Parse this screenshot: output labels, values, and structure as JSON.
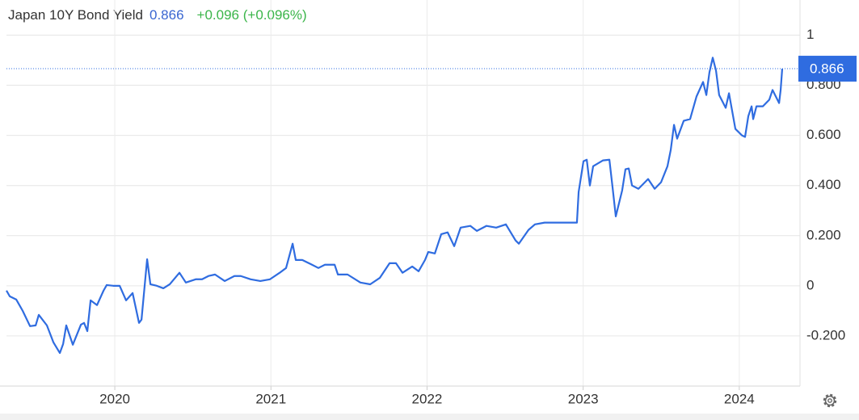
{
  "chart_data": {
    "type": "line",
    "title": "Japan 10Y Bond Yield",
    "change": "+0.096 (+0.096%)",
    "xlim": [
      2019.306,
      2024.389
    ],
    "xticks": [
      2020,
      2021,
      2022,
      2023,
      2024
    ],
    "ylim": [
      -0.4,
      1.14
    ],
    "yticks": [
      {
        "value": -0.2,
        "label": "-0.200"
      },
      0,
      {
        "value": 0.2,
        "label": "0.200"
      },
      {
        "value": 0.4,
        "label": "0.400"
      },
      {
        "value": 0.6,
        "label": "0.600"
      },
      {
        "value": 0.8,
        "label": "0.800"
      },
      1
    ],
    "grid": true,
    "series": [
      {
        "name": "Japan 10Y Bond Yield",
        "color": "#2f6ce0",
        "x": [
          2019.306,
          2019.327,
          2019.369,
          2019.41,
          2019.457,
          2019.493,
          2019.513,
          2019.565,
          2019.607,
          2019.648,
          2019.669,
          2019.689,
          2019.731,
          2019.783,
          2019.803,
          2019.824,
          2019.845,
          2019.886,
          2019.928,
          2019.948,
          2019.99,
          2020.031,
          2020.072,
          2020.114,
          2020.155,
          2020.171,
          2020.207,
          2020.228,
          2020.269,
          2020.311,
          2020.352,
          2020.414,
          2020.455,
          2020.518,
          2020.559,
          2020.6,
          2020.642,
          2020.704,
          2020.766,
          2020.807,
          2020.87,
          2020.932,
          2020.994,
          2021.056,
          2021.097,
          2021.139,
          2021.159,
          2021.201,
          2021.263,
          2021.304,
          2021.346,
          2021.408,
          2021.429,
          2021.491,
          2021.573,
          2021.636,
          2021.698,
          2021.76,
          2021.801,
          2021.843,
          2021.905,
          2021.946,
          2021.987,
          2022.008,
          2022.05,
          2022.091,
          2022.132,
          2022.174,
          2022.215,
          2022.277,
          2022.319,
          2022.381,
          2022.443,
          2022.505,
          2022.567,
          2022.588,
          2022.65,
          2022.691,
          2022.753,
          2022.836,
          2022.898,
          2022.96,
          2022.971,
          2023.002,
          2023.023,
          2023.043,
          2023.064,
          2023.126,
          2023.168,
          2023.188,
          2023.209,
          2023.25,
          2023.271,
          2023.292,
          2023.313,
          2023.354,
          2023.416,
          2023.458,
          2023.499,
          2023.54,
          2023.561,
          2023.582,
          2023.602,
          2023.644,
          2023.685,
          2023.726,
          2023.768,
          2023.789,
          2023.809,
          2023.83,
          2023.851,
          2023.871,
          2023.913,
          2023.934,
          2023.975,
          2024.017,
          2024.037,
          2024.058,
          2024.079,
          2024.089,
          2024.11,
          2024.151,
          2024.192,
          2024.213,
          2024.255,
          2024.265,
          2024.275
        ],
        "values": [
          -0.019,
          -0.042,
          -0.055,
          -0.1,
          -0.161,
          -0.158,
          -0.116,
          -0.158,
          -0.226,
          -0.268,
          -0.232,
          -0.158,
          -0.235,
          -0.155,
          -0.148,
          -0.181,
          -0.058,
          -0.077,
          -0.019,
          0.003,
          0,
          0,
          -0.058,
          -0.029,
          -0.148,
          -0.135,
          0.106,
          0.006,
          0,
          -0.01,
          0.006,
          0.052,
          0.013,
          0.026,
          0.026,
          0.039,
          0.045,
          0.019,
          0.039,
          0.039,
          0.026,
          0.019,
          0.026,
          0.052,
          0.071,
          0.168,
          0.103,
          0.103,
          0.084,
          0.071,
          0.084,
          0.084,
          0.045,
          0.045,
          0.013,
          0.006,
          0.032,
          0.09,
          0.09,
          0.052,
          0.077,
          0.058,
          0.103,
          0.135,
          0.129,
          0.206,
          0.213,
          0.158,
          0.232,
          0.239,
          0.219,
          0.239,
          0.232,
          0.245,
          0.181,
          0.168,
          0.223,
          0.245,
          0.252,
          0.252,
          0.252,
          0.252,
          0.374,
          0.497,
          0.503,
          0.4,
          0.477,
          0.5,
          0.503,
          0.394,
          0.277,
          0.381,
          0.465,
          0.468,
          0.4,
          0.387,
          0.426,
          0.387,
          0.413,
          0.477,
          0.542,
          0.642,
          0.587,
          0.658,
          0.665,
          0.755,
          0.813,
          0.761,
          0.852,
          0.91,
          0.858,
          0.761,
          0.71,
          0.768,
          0.626,
          0.6,
          0.594,
          0.677,
          0.716,
          0.665,
          0.716,
          0.716,
          0.742,
          0.781,
          0.729,
          0.781,
          0.866
        ]
      }
    ]
  }
}
